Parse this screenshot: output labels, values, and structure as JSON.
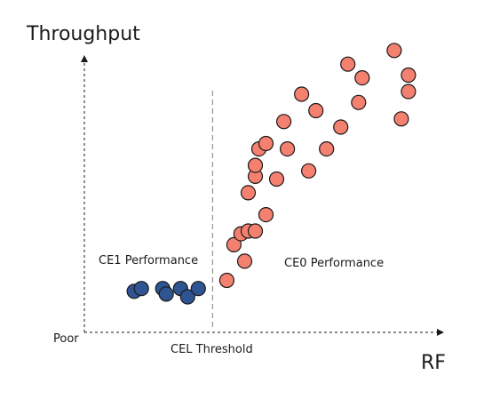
{
  "chart_data": {
    "type": "scatter",
    "title": "",
    "ylabel": "Throughput",
    "xlabel": "RF",
    "origin_label": "Poor",
    "xlim": [
      0,
      100
    ],
    "ylim": [
      0,
      100
    ],
    "grid": false,
    "threshold": {
      "x": 36,
      "label": "CEL Threshold"
    },
    "annotations": [
      {
        "text": "CE1 Performance"
      },
      {
        "text": "CE0 Performance"
      }
    ],
    "series": [
      {
        "color": "#2e5592",
        "points": [
          [
            14,
            15
          ],
          [
            16,
            16
          ],
          [
            22,
            16
          ],
          [
            23,
            14
          ],
          [
            27,
            16
          ],
          [
            29,
            13
          ],
          [
            32,
            16
          ]
        ]
      },
      {
        "color": "#f4806f",
        "points": [
          [
            40,
            19
          ],
          [
            42,
            32
          ],
          [
            44,
            36
          ],
          [
            45,
            26
          ],
          [
            46,
            37
          ],
          [
            46,
            51
          ],
          [
            48,
            37
          ],
          [
            48,
            57
          ],
          [
            48,
            61
          ],
          [
            49,
            67
          ],
          [
            51,
            43
          ],
          [
            51,
            69
          ],
          [
            54,
            56
          ],
          [
            56,
            77
          ],
          [
            57,
            67
          ],
          [
            61,
            87
          ],
          [
            63,
            59
          ],
          [
            65,
            81
          ],
          [
            68,
            67
          ],
          [
            72,
            75
          ],
          [
            74,
            98
          ],
          [
            77,
            84
          ],
          [
            78,
            93
          ],
          [
            87,
            103
          ],
          [
            89,
            78
          ],
          [
            91,
            88
          ],
          [
            91,
            94
          ]
        ]
      }
    ]
  }
}
